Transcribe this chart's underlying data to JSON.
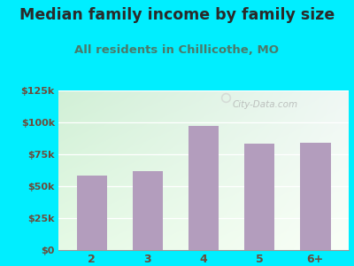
{
  "title": "Median family income by family size",
  "subtitle": "All residents in Chillicothe, MO",
  "categories": [
    "2",
    "3",
    "4",
    "5",
    "6+"
  ],
  "values": [
    58000,
    62000,
    97000,
    83000,
    84000
  ],
  "bar_color": "#b39dbd",
  "background_outer": "#00eeff",
  "title_color": "#2a2a2a",
  "subtitle_color": "#4a7a6a",
  "tick_label_color": "#6b4c3b",
  "ylim": [
    0,
    125000
  ],
  "yticks": [
    0,
    25000,
    50000,
    75000,
    100000,
    125000
  ],
  "ytick_labels": [
    "$0",
    "$25k",
    "$50k",
    "$75k",
    "$100k",
    "$125k"
  ],
  "title_fontsize": 12.5,
  "subtitle_fontsize": 9.5,
  "watermark": "City-Data.com"
}
